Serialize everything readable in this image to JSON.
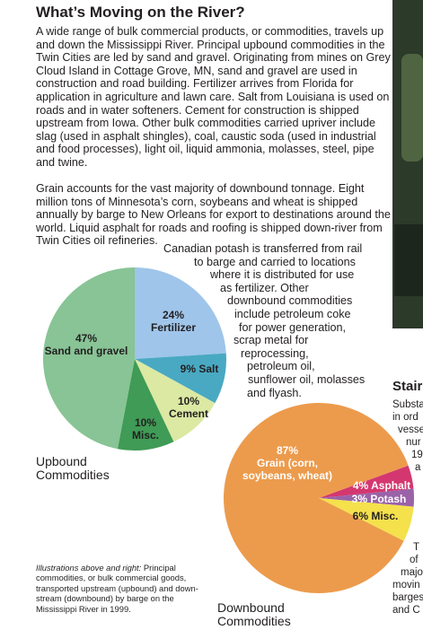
{
  "title": "What’s Moving on the River?",
  "paragraphs": [
    "A wide range of bulk commercial products, or commodities, travels up and down the Mississippi River. Principal upbound commodities in the Twin Cities are led by sand and gravel. Originating from mines on Grey Cloud Island in Cottage Grove, MN, sand and gravel are used in construction and road building. Fertilizer arrives from Florida for application in agriculture and lawn care. Salt from Louisiana is used on roads and in water softeners. Cement for construction is shipped upstream from Iowa. Other bulk commodities carried upriver include slag (used in asphalt shingles), coal, caustic soda (used in industrial and food processes), light oil, liquid ammonia, molasses, steel, pipe and twine.",
    "Grain accounts for the vast majority of downbound tonnage. Eight million tons of Minnesota’s corn, soybeans and wheat is shipped annually by barge to New Orleans for export to destinations around the world. Liquid asphalt for roads and roofing is shipped down-river from Twin Cities oil refineries."
  ],
  "potash_note": [
    "Canadian potash is transferred from rail",
    "to barge and carried to locations",
    "where it is distributed for use",
    "as fertilizer. Other",
    "downbound commodities",
    "include petroleum coke",
    "for power generation,",
    "scrap metal for",
    "reprocessing,",
    "petroleum oil,",
    "sunflower oil, molasses",
    "and flyash."
  ],
  "caption": {
    "lead": "Illustrations above and right:",
    "text": "Principal commodities, or bulk commercial goods, transported upstream (upbound) and down-stream (downbound) by barge on the Mississippi River in 1999."
  },
  "sidebar": {
    "heading": "Stair",
    "lines": [
      "Substa",
      "in ord",
      "vesse",
      "nur",
      "19",
      "a",
      "T",
      "of",
      "majo",
      "movin",
      "barges",
      "and C"
    ]
  },
  "chart_data": [
    {
      "type": "pie",
      "title": "Upbound Commodities",
      "categories": [
        "Fertilizer",
        "Salt",
        "Cement",
        "Misc.",
        "Sand and gravel"
      ],
      "values": [
        24,
        9,
        10,
        10,
        47
      ],
      "value_labels": [
        "24%",
        "9%",
        "10%",
        "10%",
        "47%"
      ],
      "colors": [
        "#9fc5ea",
        "#49a9c2",
        "#dbe9a3",
        "#3f9b55",
        "#88c495"
      ]
    },
    {
      "type": "pie",
      "title": "Downbound Commodities",
      "categories": [
        "Asphalt",
        "Potash",
        "Misc.",
        "Grain (corn, soybeans, wheat)"
      ],
      "values": [
        4,
        3,
        6,
        87
      ],
      "value_labels": [
        "4%",
        "3%",
        "6%",
        "87%"
      ],
      "colors": [
        "#d4376f",
        "#9a62a9",
        "#f4e14c",
        "#ec9b4d"
      ]
    }
  ]
}
